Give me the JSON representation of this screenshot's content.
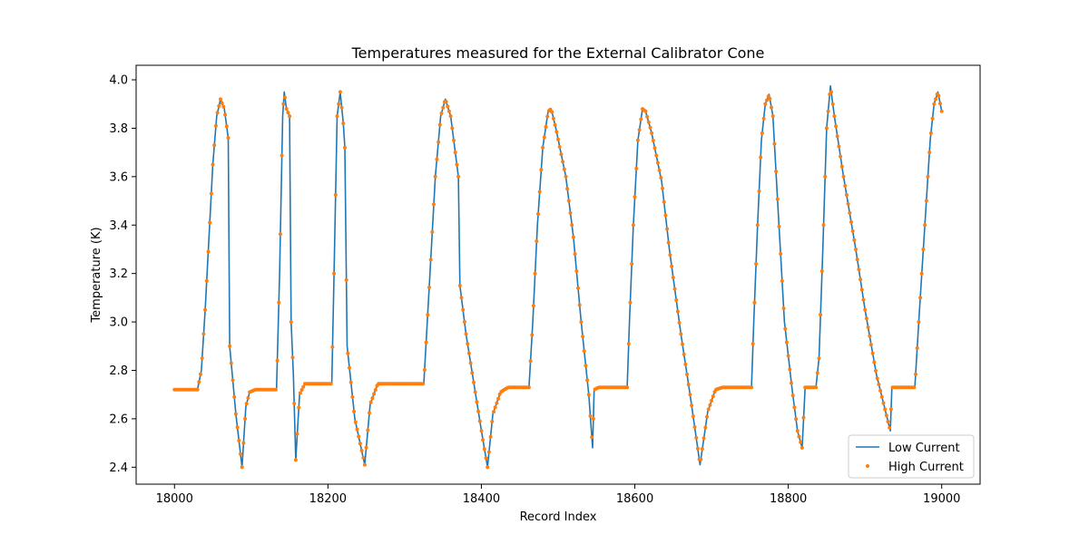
{
  "chart_data": {
    "type": "line",
    "title": "Temperatures measured for the External Calibrator Cone",
    "xlabel": "Record Index",
    "ylabel": "Temperature (K)",
    "xlim": [
      17950,
      19050
    ],
    "ylim": [
      2.33,
      4.06
    ],
    "xticks": [
      18000,
      18200,
      18400,
      18600,
      18800,
      19000
    ],
    "yticks": [
      2.4,
      2.6,
      2.8,
      3.0,
      3.2,
      3.4,
      3.6,
      3.8,
      4.0
    ],
    "xtick_labels": [
      "18000",
      "18200",
      "18400",
      "18600",
      "18800",
      "19000"
    ],
    "ytick_labels": [
      "2.4",
      "2.6",
      "2.8",
      "3.0",
      "3.2",
      "3.4",
      "3.6",
      "3.8",
      "4.0"
    ],
    "grid": false,
    "legend_position": "bottom-right",
    "colors": {
      "low": "#1f77b4",
      "high": "#ff7f0e"
    },
    "series": [
      {
        "name": "Low Current",
        "style": "line",
        "points": [
          [
            18000,
            2.72
          ],
          [
            18030,
            2.72
          ],
          [
            18035,
            2.8
          ],
          [
            18040,
            3.05
          ],
          [
            18045,
            3.35
          ],
          [
            18050,
            3.65
          ],
          [
            18055,
            3.85
          ],
          [
            18060,
            3.92
          ],
          [
            18065,
            3.88
          ],
          [
            18070,
            3.76
          ],
          [
            18072,
            2.9
          ],
          [
            18080,
            2.62
          ],
          [
            18088,
            2.4
          ],
          [
            18093,
            2.65
          ],
          [
            18098,
            2.71
          ],
          [
            18105,
            2.72
          ],
          [
            18133,
            2.72
          ],
          [
            18137,
            3.2
          ],
          [
            18141,
            3.85
          ],
          [
            18143,
            3.95
          ],
          [
            18146,
            3.88
          ],
          [
            18150,
            3.85
          ],
          [
            18152,
            3.0
          ],
          [
            18155,
            2.78
          ],
          [
            18158,
            2.43
          ],
          [
            18163,
            2.7
          ],
          [
            18170,
            2.745
          ],
          [
            18205,
            2.745
          ],
          [
            18208,
            3.2
          ],
          [
            18212,
            3.85
          ],
          [
            18216,
            3.95
          ],
          [
            18220,
            3.82
          ],
          [
            18222,
            3.72
          ],
          [
            18225,
            2.9
          ],
          [
            18235,
            2.6
          ],
          [
            18248,
            2.41
          ],
          [
            18255,
            2.66
          ],
          [
            18265,
            2.745
          ],
          [
            18325,
            2.745
          ],
          [
            18333,
            3.2
          ],
          [
            18340,
            3.6
          ],
          [
            18347,
            3.85
          ],
          [
            18353,
            3.92
          ],
          [
            18360,
            3.85
          ],
          [
            18370,
            3.6
          ],
          [
            18372,
            3.15
          ],
          [
            18380,
            2.95
          ],
          [
            18390,
            2.75
          ],
          [
            18400,
            2.55
          ],
          [
            18408,
            2.4
          ],
          [
            18415,
            2.62
          ],
          [
            18425,
            2.71
          ],
          [
            18435,
            2.73
          ],
          [
            18462,
            2.73
          ],
          [
            18467,
            3.0
          ],
          [
            18473,
            3.4
          ],
          [
            18480,
            3.72
          ],
          [
            18487,
            3.87
          ],
          [
            18491,
            3.88
          ],
          [
            18497,
            3.8
          ],
          [
            18510,
            3.6
          ],
          [
            18520,
            3.35
          ],
          [
            18530,
            3.0
          ],
          [
            18540,
            2.7
          ],
          [
            18545,
            2.48
          ],
          [
            18547,
            2.72
          ],
          [
            18553,
            2.73
          ],
          [
            18590,
            2.73
          ],
          [
            18593,
            3.0
          ],
          [
            18598,
            3.4
          ],
          [
            18604,
            3.75
          ],
          [
            18610,
            3.88
          ],
          [
            18614,
            3.87
          ],
          [
            18622,
            3.78
          ],
          [
            18635,
            3.58
          ],
          [
            18645,
            3.3
          ],
          [
            18660,
            2.95
          ],
          [
            18672,
            2.7
          ],
          [
            18685,
            2.41
          ],
          [
            18695,
            2.63
          ],
          [
            18705,
            2.72
          ],
          [
            18715,
            2.73
          ],
          [
            18752,
            2.73
          ],
          [
            18755,
            3.0
          ],
          [
            18760,
            3.4
          ],
          [
            18765,
            3.75
          ],
          [
            18770,
            3.9
          ],
          [
            18775,
            3.94
          ],
          [
            18780,
            3.85
          ],
          [
            18787,
            3.45
          ],
          [
            18795,
            3.0
          ],
          [
            18805,
            2.72
          ],
          [
            18812,
            2.55
          ],
          [
            18818,
            2.48
          ],
          [
            18822,
            2.73
          ],
          [
            18836,
            2.73
          ],
          [
            18840,
            2.85
          ],
          [
            18845,
            3.3
          ],
          [
            18850,
            3.8
          ],
          [
            18855,
            3.975
          ],
          [
            18860,
            3.85
          ],
          [
            18872,
            3.6
          ],
          [
            18888,
            3.3
          ],
          [
            18900,
            3.05
          ],
          [
            18915,
            2.78
          ],
          [
            18933,
            2.55
          ],
          [
            18935,
            2.73
          ],
          [
            18965,
            2.73
          ],
          [
            18970,
            3.0
          ],
          [
            18975,
            3.25
          ],
          [
            18980,
            3.5
          ],
          [
            18985,
            3.75
          ],
          [
            18990,
            3.9
          ],
          [
            18995,
            3.95
          ],
          [
            19000,
            3.87
          ]
        ]
      },
      {
        "name": "High Current",
        "style": "markers",
        "points": []
      }
    ]
  }
}
